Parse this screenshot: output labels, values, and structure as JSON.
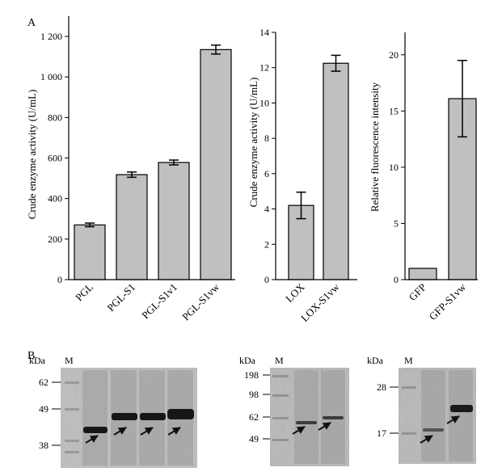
{
  "panel_labels": {
    "a": "A",
    "b": "B"
  },
  "chart_data": [
    {
      "type": "bar",
      "ylabel": "Crude enzyme activity (U/mL)",
      "ylim": [
        0,
        1300
      ],
      "yticks": [
        0,
        200,
        400,
        600,
        800,
        1000,
        1200
      ],
      "ytick_labels": [
        "0",
        "200",
        "400",
        "600",
        "800",
        "1 000",
        "1 200"
      ],
      "categories": [
        "PGL",
        "PGL-S1",
        "PGL-S1v1",
        "PGL-S1vw"
      ],
      "values": [
        270,
        518,
        578,
        1135
      ],
      "errors": [
        9,
        13,
        12,
        22
      ],
      "bar_color": "#c0c0c0"
    },
    {
      "type": "bar",
      "ylabel": "Crude enzyme activity (U/mL)",
      "ylim": [
        0,
        14
      ],
      "yticks": [
        0,
        2,
        4,
        6,
        8,
        10,
        12,
        14
      ],
      "ytick_labels": [
        "0",
        "2",
        "4",
        "6",
        "8",
        "10",
        "12",
        "14"
      ],
      "categories": [
        "LOX",
        "LOX-S1vw"
      ],
      "values": [
        4.2,
        12.25
      ],
      "errors": [
        0.75,
        0.45
      ],
      "bar_color": "#c0c0c0"
    },
    {
      "type": "bar",
      "ylabel": "Relative fluorescence intensity",
      "ylim": [
        0,
        22
      ],
      "yticks": [
        0,
        5,
        10,
        15,
        20
      ],
      "ytick_labels": [
        "0",
        "5",
        "10",
        "15",
        "20"
      ],
      "categories": [
        "GFP",
        "GFP-S1vw"
      ],
      "values": [
        1.0,
        16.1
      ],
      "errors": [
        0,
        3.4
      ],
      "bar_color": "#c0c0c0"
    }
  ],
  "gels": [
    {
      "kda_label": "kDa",
      "marker_label": "M",
      "markers": [
        "62",
        "49",
        "38"
      ]
    },
    {
      "kda_label": "kDa",
      "marker_label": "M",
      "markers": [
        "198",
        "98",
        "62",
        "49"
      ]
    },
    {
      "kda_label": "kDa",
      "marker_label": "M",
      "markers": [
        "28",
        "17"
      ]
    }
  ]
}
